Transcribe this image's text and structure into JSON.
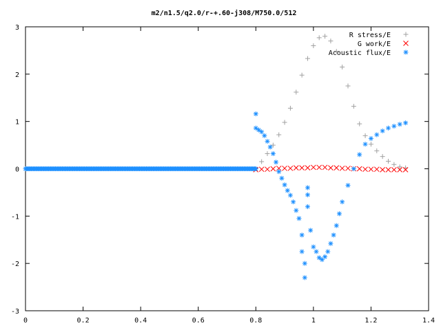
{
  "chart_data": {
    "type": "scatter",
    "title": "m2/n1.5/q2.0/r-+.60-j308/M750.0/512",
    "xlabel": "",
    "ylabel": "",
    "xlim": [
      0,
      1.4
    ],
    "ylim": [
      -3,
      3
    ],
    "grid": false,
    "legend_position": "top-right",
    "x_ticks": [
      0,
      0.2,
      0.4,
      0.6,
      0.8,
      1,
      1.2,
      1.4
    ],
    "y_ticks": [
      -3,
      -2,
      -1,
      0,
      1,
      2,
      3
    ],
    "x_tick_labels": [
      "0",
      "0.2",
      "0.4",
      "0.6",
      "0.8",
      "1",
      "1.2",
      "1.4"
    ],
    "y_tick_labels": [
      "-3",
      "-2",
      "-1",
      "0",
      "1",
      "2",
      "3"
    ],
    "series": [
      {
        "name": "R stress/E",
        "marker": "plus",
        "color": "#a0a0a0",
        "x": [
          0.8,
          0.82,
          0.84,
          0.86,
          0.88,
          0.9,
          0.92,
          0.94,
          0.96,
          0.98,
          1.0,
          1.02,
          1.04,
          1.06,
          1.08,
          1.1,
          1.12,
          1.14,
          1.16,
          1.18,
          1.2,
          1.22,
          1.24,
          1.26,
          1.28,
          1.3,
          1.32
        ],
        "y": [
          0.0,
          0.15,
          0.32,
          0.5,
          0.72,
          0.98,
          1.28,
          1.62,
          1.98,
          2.33,
          2.6,
          2.77,
          2.8,
          2.7,
          2.48,
          2.15,
          1.75,
          1.32,
          0.95,
          0.7,
          0.52,
          0.38,
          0.26,
          0.16,
          0.09,
          0.04,
          0.02
        ]
      },
      {
        "name": "G work/E",
        "marker": "cross",
        "color": "#ff0000",
        "x": [
          0.8,
          0.82,
          0.84,
          0.86,
          0.88,
          0.9,
          0.92,
          0.94,
          0.96,
          0.98,
          1.0,
          1.02,
          1.04,
          1.06,
          1.08,
          1.1,
          1.12,
          1.14,
          1.16,
          1.18,
          1.2,
          1.22,
          1.24,
          1.26,
          1.28,
          1.3,
          1.32
        ],
        "y": [
          -0.02,
          -0.01,
          -0.01,
          0.0,
          0.01,
          0.01,
          0.01,
          0.02,
          0.02,
          0.02,
          0.03,
          0.03,
          0.03,
          0.02,
          0.02,
          0.01,
          0.01,
          0.0,
          0.0,
          -0.01,
          -0.01,
          -0.01,
          -0.02,
          -0.02,
          -0.02,
          -0.02,
          -0.02
        ]
      },
      {
        "name": "Acoustic flux/E",
        "marker": "asterisk",
        "color": "#1e90ff",
        "x": [
          0.8,
          0.8,
          0.81,
          0.82,
          0.83,
          0.84,
          0.85,
          0.86,
          0.87,
          0.88,
          0.89,
          0.9,
          0.91,
          0.92,
          0.93,
          0.94,
          0.95,
          0.96,
          0.96,
          0.97,
          0.97,
          0.98,
          0.98,
          0.98,
          0.99,
          1.0,
          1.01,
          1.02,
          1.03,
          1.04,
          1.05,
          1.06,
          1.07,
          1.08,
          1.09,
          1.1,
          1.12,
          1.14,
          1.16,
          1.18,
          1.2,
          1.22,
          1.24,
          1.26,
          1.28,
          1.3,
          1.32
        ],
        "y": [
          1.16,
          0.86,
          0.82,
          0.78,
          0.7,
          0.58,
          0.46,
          0.32,
          0.14,
          -0.06,
          -0.2,
          -0.34,
          -0.46,
          -0.56,
          -0.7,
          -0.88,
          -1.05,
          -1.4,
          -1.75,
          -2.0,
          -2.3,
          -0.4,
          -0.55,
          -0.8,
          -1.3,
          -1.65,
          -1.75,
          -1.88,
          -1.92,
          -1.86,
          -1.75,
          -1.58,
          -1.4,
          -1.2,
          -0.95,
          -0.7,
          -0.35,
          0.0,
          0.3,
          0.52,
          0.64,
          0.72,
          0.8,
          0.86,
          0.9,
          0.94,
          0.97
        ]
      },
      {
        "name": "",
        "marker": "asterisk",
        "color": "#1e90ff",
        "x_range": [
          0.0,
          0.8
        ],
        "y_constant": 0.0
      }
    ]
  }
}
